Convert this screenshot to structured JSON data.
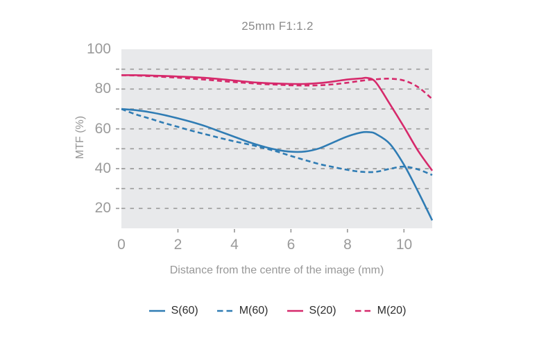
{
  "title": "25mm F1:1.2",
  "axis": {
    "y_title": "MTF (%)",
    "x_title": "Distance from the centre of the image (mm)",
    "y_labels": [
      "100",
      "80",
      "60",
      "40",
      "20"
    ],
    "x_labels": [
      "0",
      "2",
      "4",
      "6",
      "8",
      "10"
    ]
  },
  "colors": {
    "blue": "#2f7cb4",
    "pink": "#d6296b",
    "grid": "#9b9b9b",
    "plot_background": "#e8e9eb",
    "axis_text": "#9a9a9a",
    "legend_text": "#2d2d2d"
  },
  "chart_data": {
    "type": "line",
    "title": "25mm F1:1.2",
    "xlabel": "Distance from the centre of the image (mm)",
    "ylabel": "MTF (%)",
    "xlim": [
      0,
      11
    ],
    "ylim": [
      10,
      100
    ],
    "x_ticks": [
      0,
      2,
      4,
      6,
      8,
      10
    ],
    "y_tick_labels": [
      100,
      80,
      60,
      40,
      20
    ],
    "gridlines_y": [
      20,
      30,
      40,
      50,
      60,
      70,
      80,
      90
    ],
    "grid": "horizontal dashed",
    "legend_position": "bottom-center",
    "series": [
      {
        "name": "S(60)",
        "color": "#2f7cb4",
        "style": "solid",
        "points": [
          [
            0,
            70
          ],
          [
            0.5,
            69.4
          ],
          [
            1,
            68.4
          ],
          [
            1.5,
            67
          ],
          [
            2,
            65.3
          ],
          [
            2.5,
            63.4
          ],
          [
            3,
            61.2
          ],
          [
            3.5,
            58.6
          ],
          [
            4,
            56
          ],
          [
            4.5,
            53.4
          ],
          [
            5,
            51.2
          ],
          [
            5.5,
            49.5
          ],
          [
            6,
            48.5
          ],
          [
            6.5,
            48.6
          ],
          [
            7,
            50.2
          ],
          [
            7.5,
            53.2
          ],
          [
            8,
            56.2
          ],
          [
            8.5,
            58.2
          ],
          [
            8.8,
            58.3
          ],
          [
            9,
            57.5
          ],
          [
            9.5,
            52.5
          ],
          [
            10,
            42
          ],
          [
            10.5,
            28.5
          ],
          [
            11,
            14
          ]
        ]
      },
      {
        "name": "M(60)",
        "color": "#2f7cb4",
        "style": "dashed",
        "points": [
          [
            0,
            70
          ],
          [
            0.5,
            67.3
          ],
          [
            1,
            65.2
          ],
          [
            1.5,
            63
          ],
          [
            2,
            61
          ],
          [
            2.5,
            59
          ],
          [
            3,
            57.2
          ],
          [
            3.5,
            55.4
          ],
          [
            4,
            53.7
          ],
          [
            4.5,
            52.2
          ],
          [
            5,
            50.5
          ],
          [
            5.5,
            48.6
          ],
          [
            6,
            46.4
          ],
          [
            6.5,
            44.3
          ],
          [
            7,
            42.3
          ],
          [
            7.5,
            40.8
          ],
          [
            8,
            39.4
          ],
          [
            8.5,
            38.4
          ],
          [
            9,
            38.4
          ],
          [
            9.5,
            39.9
          ],
          [
            10,
            41
          ],
          [
            10.5,
            39.6
          ],
          [
            11,
            36.8
          ]
        ]
      },
      {
        "name": "S(20)",
        "color": "#d6296b",
        "style": "solid",
        "points": [
          [
            0,
            87
          ],
          [
            0.5,
            87
          ],
          [
            1,
            86.8
          ],
          [
            1.5,
            86.6
          ],
          [
            2,
            86.3
          ],
          [
            2.5,
            86
          ],
          [
            3,
            85.6
          ],
          [
            3.5,
            85
          ],
          [
            4,
            84.3
          ],
          [
            4.5,
            83.6
          ],
          [
            5,
            83.1
          ],
          [
            5.5,
            82.8
          ],
          [
            6,
            82.6
          ],
          [
            6.5,
            82.6
          ],
          [
            7,
            83
          ],
          [
            7.5,
            83.8
          ],
          [
            8,
            84.8
          ],
          [
            8.5,
            85.4
          ],
          [
            8.7,
            85.6
          ],
          [
            9,
            83.5
          ],
          [
            9.5,
            72.5
          ],
          [
            10,
            61
          ],
          [
            10.5,
            49
          ],
          [
            11,
            39
          ]
        ]
      },
      {
        "name": "M(20)",
        "color": "#d6296b",
        "style": "dashed",
        "points": [
          [
            0,
            87
          ],
          [
            0.5,
            86.8
          ],
          [
            1,
            86.5
          ],
          [
            1.5,
            86.1
          ],
          [
            2,
            85.7
          ],
          [
            2.5,
            85.2
          ],
          [
            3,
            84.7
          ],
          [
            3.5,
            84.1
          ],
          [
            4,
            83.5
          ],
          [
            4.5,
            83
          ],
          [
            5,
            82.5
          ],
          [
            5.5,
            82.2
          ],
          [
            6,
            81.9
          ],
          [
            6.5,
            81.8
          ],
          [
            7,
            81.9
          ],
          [
            7.5,
            82.4
          ],
          [
            8,
            83.2
          ],
          [
            8.5,
            84.2
          ],
          [
            9,
            84.9
          ],
          [
            9.5,
            85.2
          ],
          [
            10,
            84.3
          ],
          [
            10.5,
            81
          ],
          [
            11,
            75
          ]
        ]
      }
    ]
  }
}
